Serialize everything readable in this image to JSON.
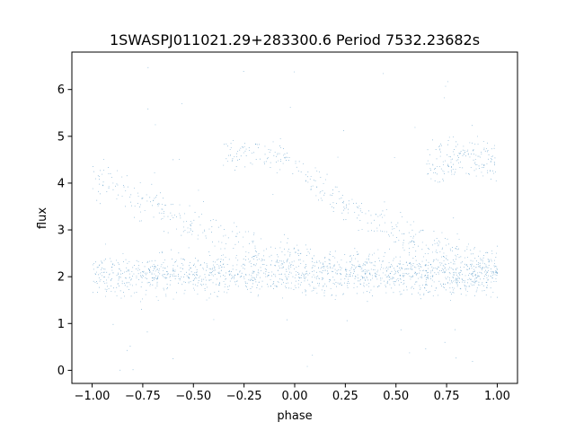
{
  "chart_data": {
    "type": "scatter",
    "title": "1SWASPJ011021.29+283300.6 Period 7532.23682s",
    "xlabel": "phase",
    "ylabel": "flux",
    "xlim": [
      -1.1,
      1.1
    ],
    "ylim": [
      -0.28,
      6.8
    ],
    "xticks": [
      -1.0,
      -0.75,
      -0.5,
      -0.25,
      0.0,
      0.25,
      0.5,
      0.75,
      1.0
    ],
    "xtick_labels": [
      "−1.00",
      "−0.75",
      "−0.50",
      "−0.25",
      "0.00",
      "0.25",
      "0.50",
      "0.75",
      "1.00"
    ],
    "yticks": [
      0,
      1,
      2,
      3,
      4,
      5,
      6
    ],
    "ytick_labels": [
      "0",
      "1",
      "2",
      "3",
      "4",
      "5",
      "6"
    ],
    "grid": false,
    "marker_color": "#1f77b4",
    "x_range_of_points": [
      -1.0,
      1.0
    ],
    "approximate_points": 40000,
    "series": [
      {
        "kind": "baseline band",
        "flux_center": 2.05,
        "flux_spread": [
          1.3,
          2.9
        ]
      },
      {
        "kind": "descending sweep",
        "phase": [
          -1.0,
          -0.75,
          -0.5,
          -0.25,
          0.0,
          0.25,
          0.5,
          0.75,
          1.0
        ],
        "flux": [
          4.2,
          3.6,
          3.1,
          2.7,
          2.4,
          2.2,
          2.1,
          2.0,
          2.0
        ]
      },
      {
        "kind": "repeating sweep",
        "phase": [
          -0.35,
          -0.2,
          -0.05,
          0.1,
          0.25,
          0.4,
          0.55,
          0.7,
          0.85,
          1.0
        ],
        "flux": [
          4.5,
          4.7,
          4.5,
          4.0,
          3.6,
          3.2,
          2.9,
          2.7,
          2.5,
          2.3
        ]
      },
      {
        "kind": "upper cluster",
        "phase": [
          0.65,
          0.8,
          0.95
        ],
        "flux": [
          4.3,
          4.6,
          4.5
        ]
      }
    ],
    "outlier_flux_range": [
      0.0,
      6.5
    ]
  }
}
